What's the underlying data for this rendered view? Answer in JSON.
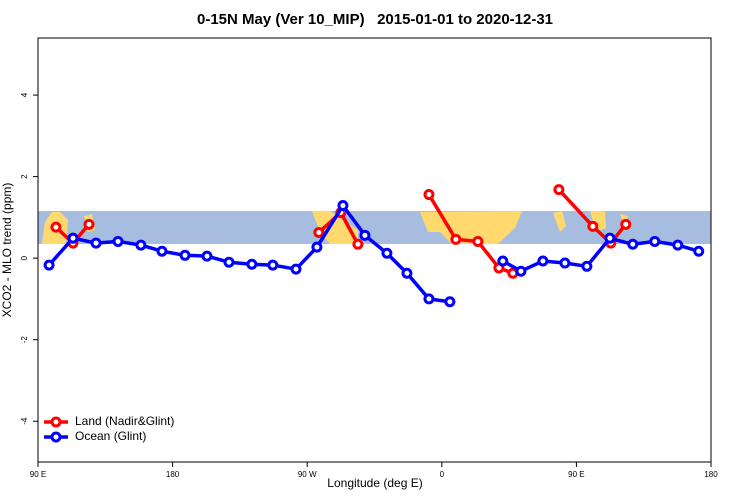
{
  "chart_data": {
    "type": "line",
    "title": "0-15N May (Ver 10_MIP)   2015-01-01 to 2020-12-31",
    "x_label": "Longitude (deg E)",
    "y_label": "XCO2 - MLO trend (ppm)",
    "xlim": [
      90,
      540
    ],
    "xticks": [
      {
        "value": 90,
        "label": "90 E"
      },
      180,
      {
        "value": 270,
        "label": "90 W"
      },
      {
        "value": 360,
        "label": "0"
      },
      {
        "value": 450,
        "label": "90 E"
      },
      {
        "value": 540,
        "label": "180"
      }
    ],
    "ylim": [
      -5,
      5.4
    ],
    "yticks": [
      -4,
      -2,
      0,
      2,
      4
    ],
    "legend": "bottom-left",
    "series": [
      {
        "name": "Land (Nadir&Glint)",
        "color": "#ff0000",
        "x": [
          102,
          113.4,
          124.1,
          null,
          277.8,
          292.5,
          303.9,
          null,
          351.4,
          369.4,
          384.1,
          398.2,
          407.5,
          null,
          438.3,
          461,
          473,
          483
        ],
        "values": [
          0.76,
          0.37,
          0.83,
          null,
          0.63,
          1.12,
          0.34,
          null,
          1.56,
          0.46,
          0.41,
          -0.24,
          -0.37,
          null,
          1.68,
          0.78,
          0.37,
          0.83
        ]
      },
      {
        "name": "Ocean (Glint)",
        "color": "#0000ff",
        "x": [
          97.4,
          113.4,
          128.8,
          143.5,
          158.8,
          172.9,
          188.3,
          203,
          217.7,
          233,
          247,
          262.5,
          276.5,
          293.9,
          308.6,
          323.3,
          336.7,
          351.4,
          365.4,
          null,
          400.8,
          412.9,
          427.6,
          442.3,
          457,
          472.4,
          487.7,
          502.4,
          517.8,
          531.8
        ],
        "values": [
          -0.17,
          0.49,
          0.37,
          0.41,
          0.32,
          0.17,
          0.07,
          0.05,
          -0.1,
          -0.15,
          -0.17,
          -0.27,
          0.27,
          1.29,
          0.56,
          0.12,
          -0.37,
          -1.0,
          -1.07,
          null,
          -0.07,
          -0.32,
          -0.07,
          -0.12,
          -0.2,
          0.49,
          0.34,
          0.41,
          0.32,
          0.17
        ]
      }
    ]
  }
}
